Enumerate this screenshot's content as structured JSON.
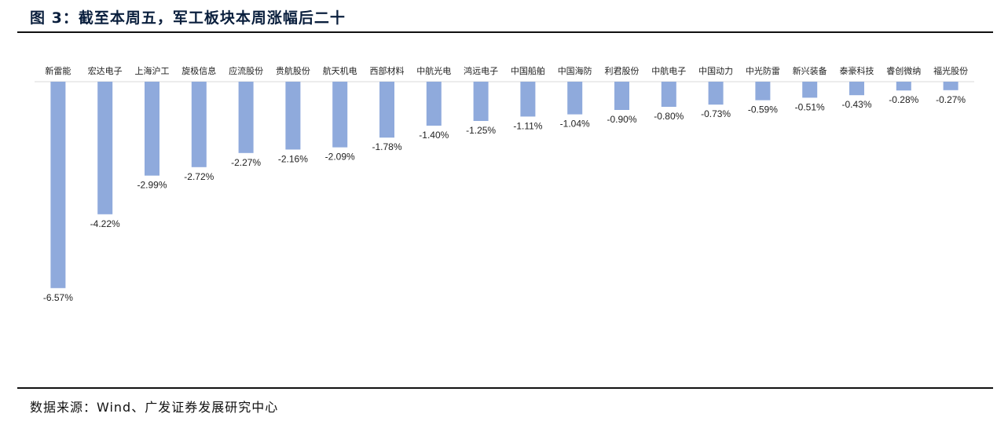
{
  "title": "图 3：截至本周五，军工板块本周涨幅后二十",
  "source": "数据来源：Wind、广发证券发展研究中心",
  "colors": {
    "bar": "#8faadc",
    "axis": "#d9d9d9",
    "text": "#222222",
    "title": "#0a1f3d"
  },
  "chart_data": {
    "type": "bar",
    "title": "",
    "xlabel": "",
    "ylabel": "",
    "grid": false,
    "categories": [
      "新雷能",
      "宏达电子",
      "上海沪工",
      "旋极信息",
      "应流股份",
      "贵航股份",
      "航天机电",
      "西部材料",
      "中航光电",
      "鸿远电子",
      "中国船舶",
      "中国海防",
      "利君股份",
      "中航电子",
      "中国动力",
      "中光防雷",
      "新兴装备",
      "泰豪科技",
      "睿创微纳",
      "福光股份"
    ],
    "values": [
      -6.57,
      -4.22,
      -2.99,
      -2.72,
      -2.27,
      -2.16,
      -2.09,
      -1.78,
      -1.4,
      -1.25,
      -1.11,
      -1.04,
      -0.9,
      -0.8,
      -0.73,
      -0.59,
      -0.51,
      -0.43,
      -0.28,
      -0.27
    ],
    "value_labels": [
      "-6.57%",
      "-4.22%",
      "-2.99%",
      "-2.72%",
      "-2.27%",
      "-2.16%",
      "-2.09%",
      "-1.78%",
      "-1.40%",
      "-1.25%",
      "-1.11%",
      "-1.04%",
      "-0.90%",
      "-0.80%",
      "-0.73%",
      "-0.59%",
      "-0.51%",
      "-0.43%",
      "-0.28%",
      "-0.27%"
    ],
    "ylim": [
      -7,
      0
    ]
  }
}
